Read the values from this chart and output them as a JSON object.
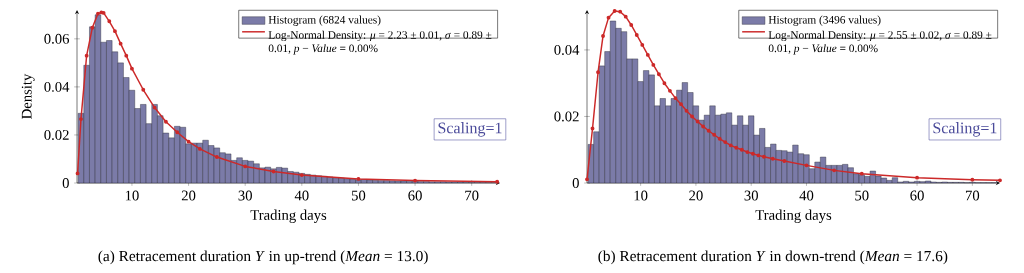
{
  "chart_data": [
    {
      "type": "histogram",
      "xlabel": "Trading days",
      "ylabel": "Density",
      "xlim": [
        0.3,
        75
      ],
      "ylim": [
        0,
        0.072
      ],
      "xticks": [
        10,
        20,
        30,
        40,
        50,
        60,
        70
      ],
      "yticks": [
        0,
        0.02,
        0.04,
        0.06
      ],
      "legend": "top right",
      "annotations": [
        "Scaling=1",
        "(a)  Retracement duration *Y* in up-trend (*Mean* = 13.0)"
      ],
      "series": [
        {
          "name": "Histogram (6824 values)",
          "color": "#7b7ba8",
          "bins": [
            0.5,
            1.5,
            2.5,
            3.5,
            4.5,
            5.5,
            6.5,
            7.5,
            8.5,
            9.5,
            10.5,
            11.5,
            12.5,
            13.5,
            14.5,
            15.5,
            16.5,
            17.5,
            18.5,
            19.5,
            20.5,
            21.5,
            22.5,
            23.5,
            24.5,
            25.5,
            26.5,
            27.5,
            28.5,
            29.5,
            30.5,
            31.5,
            32.5,
            33.5,
            34.5,
            35.5,
            36.5,
            37.5,
            38.5,
            39.5,
            40.5,
            41.5,
            42.5,
            43.5,
            44.5,
            45.5,
            46.5,
            47.5,
            48.5,
            49.5,
            50.5,
            51.5,
            52.5,
            53.5,
            54.5,
            55.5,
            56.5,
            57.5,
            58.5,
            59.5,
            60.5,
            61.5,
            62.5,
            63.5,
            64.5,
            65.5,
            66.5,
            67.5,
            68.5,
            69.5,
            70.5,
            71.5,
            72.5,
            73.5,
            74.5
          ],
          "values": [
            0.029,
            0.049,
            0.065,
            0.07,
            0.0586,
            0.0593,
            0.0546,
            0.05,
            0.0439,
            0.0386,
            0.031,
            0.0327,
            0.0247,
            0.0327,
            0.028,
            0.0208,
            0.0188,
            0.0236,
            0.0232,
            0.0163,
            0.0166,
            0.0166,
            0.0178,
            0.0156,
            0.0146,
            0.0126,
            0.0121,
            0.0094,
            0.0105,
            0.0094,
            0.0091,
            0.008,
            0.0063,
            0.0066,
            0.0059,
            0.0065,
            0.0062,
            0.0048,
            0.0045,
            0.004,
            0.0036,
            0.0033,
            0.003,
            0.0028,
            0.0025,
            0.0022,
            0.002,
            0.0018,
            0.0016,
            0.0013,
            0.0015,
            0.0012,
            0.0011,
            0.001,
            0.001,
            0.0009,
            0.0008,
            0.0008,
            0.0007,
            0.0007,
            0.0006,
            0.0006,
            0.0005,
            0.0005,
            0.0005,
            0.0004,
            0.0004,
            0.0004,
            0.0003,
            0.0003,
            0.0003,
            0.0003,
            0.0002,
            0.0002
          ]
        },
        {
          "type": "line",
          "name": "Log-Normal Density: *μ* = 2.23 ± 0.01, *σ* = 0.89 ± 0.01, *p* − *Value* = 0.00%",
          "color": "#cc2929",
          "marker": "circle",
          "x": [
            0.4,
            1,
            2,
            3,
            4,
            4.6,
            5,
            6,
            7,
            8,
            9,
            10,
            12,
            14,
            16,
            18,
            20,
            22,
            25,
            30,
            35,
            40,
            50,
            60,
            74.5
          ],
          "values": [
            0.004,
            0.0266,
            0.053,
            0.0646,
            0.0705,
            0.071,
            0.0708,
            0.0673,
            0.0632,
            0.058,
            0.053,
            0.0476,
            0.0388,
            0.0314,
            0.0255,
            0.0211,
            0.0172,
            0.0142,
            0.0108,
            0.0069,
            0.0048,
            0.0033,
            0.0017,
            0.001,
            0.0005
          ]
        }
      ]
    },
    {
      "type": "histogram",
      "xlabel": "Trading days",
      "xlim": [
        0.3,
        75
      ],
      "ylim": [
        0,
        0.052
      ],
      "xticks": [
        10,
        20,
        30,
        40,
        50,
        60,
        70
      ],
      "yticks": [
        0,
        0.02,
        0.04
      ],
      "legend": "top right",
      "annotations": [
        "Scaling=1",
        "(b)  Retracement duration *Y* in down-trend (*Mean* = 17.6)"
      ],
      "series": [
        {
          "name": "Histogram (3496 values)",
          "color": "#7b7ba8",
          "bins": [
            0.5,
            1.5,
            2.5,
            3.5,
            4.5,
            5.5,
            6.5,
            7.5,
            8.5,
            9.5,
            10.5,
            11.5,
            12.5,
            13.5,
            14.5,
            15.5,
            16.5,
            17.5,
            18.5,
            19.5,
            20.5,
            21.5,
            22.5,
            23.5,
            24.5,
            25.5,
            26.5,
            27.5,
            28.5,
            29.5,
            30.5,
            31.5,
            32.5,
            33.5,
            34.5,
            35.5,
            36.5,
            37.5,
            38.5,
            39.5,
            40.5,
            41.5,
            42.5,
            43.5,
            44.5,
            45.5,
            46.5,
            47.5,
            48.5,
            49.5,
            50.5,
            51.5,
            52.5,
            53.5,
            54.5,
            55.5,
            56.5,
            57.5,
            58.5,
            59.5,
            60.5,
            61.5,
            62.5,
            63.5,
            64.5,
            65.5,
            66.5,
            67.5,
            68.5,
            69.5,
            70.5,
            71.5,
            72.5,
            73.5,
            74.5
          ],
          "values": [
            0.0116,
            0.0154,
            0.0352,
            0.0395,
            0.0487,
            0.0465,
            0.0455,
            0.0373,
            0.0373,
            0.0305,
            0.0338,
            0.0325,
            0.0232,
            0.0254,
            0.0232,
            0.0254,
            0.0279,
            0.0302,
            0.0272,
            0.0232,
            0.0189,
            0.0204,
            0.0232,
            0.0204,
            0.0207,
            0.0211,
            0.0174,
            0.0202,
            0.0174,
            0.0202,
            0.0144,
            0.0164,
            0.0107,
            0.0117,
            0.0098,
            0.0097,
            0.0093,
            0.0114,
            0.0088,
            0.0085,
            0.0043,
            0.0063,
            0.0078,
            0.0053,
            0.0053,
            0.0053,
            0.0056,
            0.0046,
            0.0028,
            0.0025,
            0.002,
            0.0036,
            0.0021,
            0.0015,
            0.0008,
            0.0016,
            0.0003,
            0.0005,
            0.0003,
            0.0005,
            0.0004,
            0.0006,
            0.0003,
            0.0002,
            0.0003,
            0.0002,
            0.0002,
            0.0002,
            0.0001,
            0.0002,
            0.0001,
            0.0001,
            0.0001,
            0.0001
          ]
        },
        {
          "type": "line",
          "name": "Log-Normal Density: *μ* = 2.55 ± 0.02, *σ* = 0.89 ± 0.01, *p* − *Value* = 0.00%",
          "color": "#cc2929",
          "marker": "circle",
          "x": [
            0.3,
            1.3,
            2.3,
            3.2,
            4.2,
            5.3,
            6.3,
            7.3,
            8.3,
            9.3,
            10.3,
            11.3,
            12.3,
            13.3,
            14.3,
            15.3,
            16.3,
            17.3,
            18.3,
            19.3,
            20.3,
            21.3,
            22.3,
            23.3,
            24.3,
            25.3,
            26.3,
            27.3,
            28.3,
            29.3,
            30.3,
            31.3,
            32.3,
            33.9,
            36,
            40,
            45,
            50,
            60,
            70,
            75
          ],
          "values": [
            0.0011,
            0.0164,
            0.0333,
            0.0442,
            0.0497,
            0.0517,
            0.0515,
            0.05,
            0.0475,
            0.0445,
            0.0415,
            0.0385,
            0.0355,
            0.0327,
            0.03,
            0.0277,
            0.0255,
            0.0237,
            0.0217,
            0.02,
            0.0185,
            0.017,
            0.0157,
            0.0145,
            0.0133,
            0.0123,
            0.0113,
            0.0106,
            0.01,
            0.0093,
            0.0088,
            0.0083,
            0.0079,
            0.0073,
            0.0066,
            0.0053,
            0.0038,
            0.0028,
            0.0016,
            0.001,
            0.0008
          ]
        }
      ]
    }
  ]
}
